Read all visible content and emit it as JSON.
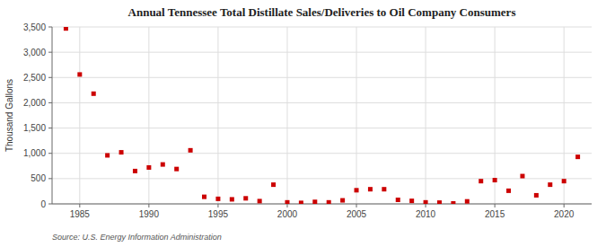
{
  "chart_data": {
    "type": "scatter",
    "title": "Annual Tennessee Total Distillate Sales/Deliveries to Oil Company Consumers",
    "y_label": "Thousand Gallons",
    "source": "Source: U.S. Energy Information Administration",
    "color": "#cc0000",
    "marker": "square",
    "grid": true,
    "xlim": [
      1983,
      2022
    ],
    "ylim": [
      0,
      3500
    ],
    "xticks": [
      1985,
      1990,
      1995,
      2000,
      2005,
      2010,
      2015,
      2020
    ],
    "yticks": [
      0,
      500,
      {
        "value": 1000,
        "label": "1,000"
      },
      {
        "value": 1500,
        "label": "1,500"
      },
      {
        "value": 2000,
        "label": "2,000"
      },
      {
        "value": 2500,
        "label": "2,500"
      },
      {
        "value": 3000,
        "label": "3,000"
      },
      {
        "value": 3500,
        "label": "3,500"
      }
    ],
    "x": [
      1984,
      1985,
      1986,
      1987,
      1988,
      1989,
      1990,
      1991,
      1992,
      1993,
      1994,
      1995,
      1996,
      1997,
      1998,
      1999,
      2000,
      2001,
      2002,
      2003,
      2004,
      2005,
      2006,
      2007,
      2008,
      2009,
      2010,
      2011,
      2012,
      2013,
      2014,
      2015,
      2016,
      2017,
      2018,
      2019,
      2020,
      2021
    ],
    "values": [
      3470,
      2560,
      2180,
      960,
      1020,
      650,
      720,
      780,
      690,
      1060,
      140,
      100,
      90,
      110,
      55,
      380,
      30,
      20,
      40,
      30,
      70,
      270,
      290,
      290,
      80,
      60,
      30,
      25,
      10,
      50,
      450,
      470,
      260,
      550,
      170,
      380,
      450,
      930
    ]
  }
}
